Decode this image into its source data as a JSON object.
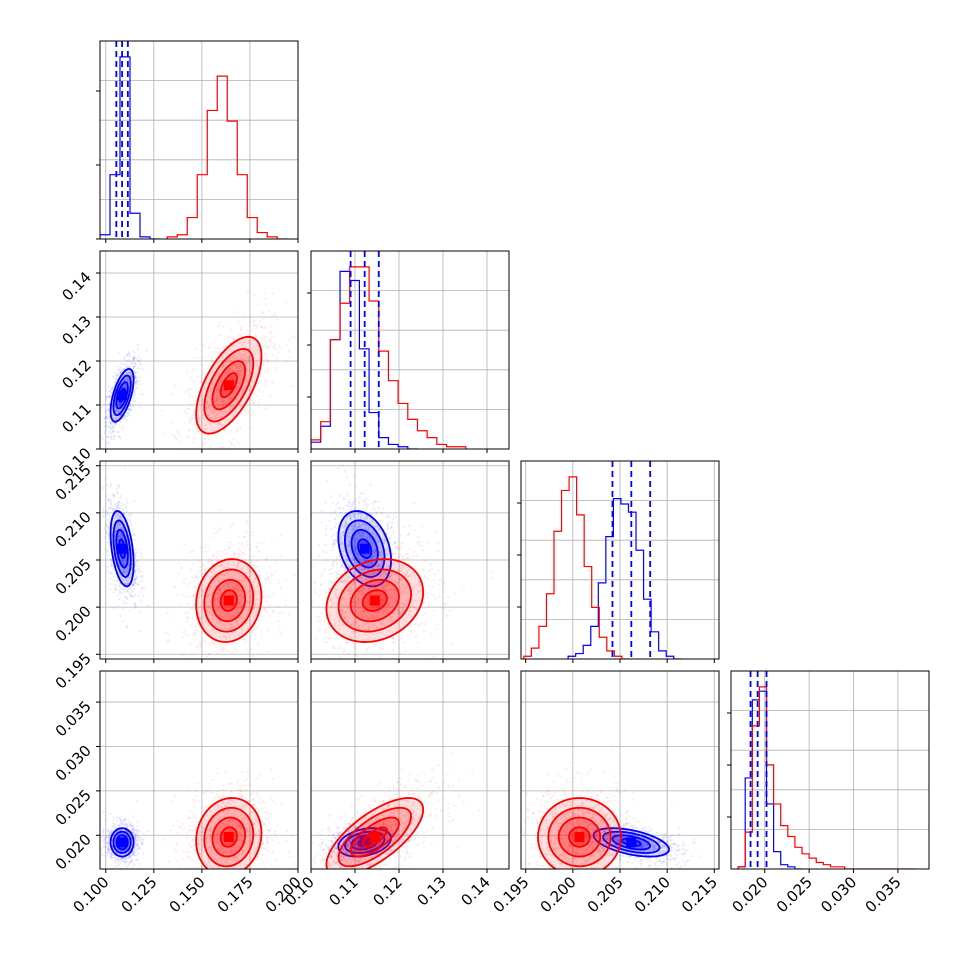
{
  "chart_data": {
    "type": "corner",
    "parameters": 4,
    "grid": true,
    "colors": {
      "blue": "#0000ff",
      "red": "#ff0000",
      "axis": "#000000",
      "grid": "#b0b0b0"
    },
    "ranges": [
      [
        0.097,
        0.2
      ],
      [
        0.1,
        0.145
      ],
      [
        0.1945,
        0.2155
      ],
      [
        0.0162,
        0.0385
      ]
    ],
    "ticks": [
      {
        "values": [
          0.1,
          0.125,
          0.15,
          0.175,
          0.2
        ],
        "labels": [
          "0.100",
          "0.125",
          "0.150",
          "0.175",
          "0.200"
        ]
      },
      {
        "values": [
          0.1,
          0.11,
          0.12,
          0.13,
          0.14
        ],
        "labels": [
          "0.10",
          "0.11",
          "0.12",
          "0.13",
          "0.14"
        ]
      },
      {
        "values": [
          0.195,
          0.2,
          0.205,
          0.21,
          0.215
        ],
        "labels": [
          "0.195",
          "0.200",
          "0.205",
          "0.210",
          "0.215"
        ]
      },
      {
        "values": [
          0.02,
          0.025,
          0.03,
          0.035
        ],
        "labels": [
          "0.020",
          "0.025",
          "0.030",
          "0.035"
        ]
      }
    ],
    "series": [
      {
        "color": "blue",
        "mean": [
          0.1085,
          0.1122,
          0.2062,
          0.0192
        ],
        "std": [
          0.003,
          0.003,
          0.002,
          0.0008
        ],
        "corr": [
          [
            0,
            1,
            0.6
          ],
          [
            0,
            2,
            -0.4
          ],
          [
            1,
            2,
            -0.3
          ],
          [
            2,
            3,
            -0.5
          ],
          [
            0,
            3,
            0.0
          ],
          [
            1,
            3,
            0.3
          ]
        ],
        "quantiles": [
          [
            0.1055,
            0.1085,
            0.1115
          ],
          [
            0.109,
            0.1122,
            0.1154
          ],
          [
            0.2042,
            0.2062,
            0.2082
          ],
          [
            0.0184,
            0.0192,
            0.0202
          ]
        ]
      },
      {
        "color": "red",
        "mean": [
          0.164,
          0.1145,
          0.2007,
          0.0198
        ],
        "std": [
          0.0085,
          0.0055,
          0.0022,
          0.0022
        ],
        "corr": [
          [
            0,
            1,
            0.6
          ],
          [
            0,
            2,
            0.1
          ],
          [
            1,
            2,
            0.2
          ],
          [
            1,
            3,
            0.7
          ],
          [
            0,
            3,
            0.1
          ],
          [
            2,
            3,
            0.0
          ]
        ]
      }
    ],
    "histograms": [
      {
        "blue": {
          "start": 0.097,
          "width": 0.0052,
          "counts": [
            2,
            30,
            85,
            12,
            1,
            0
          ]
        },
        "red": {
          "start": 0.132,
          "width": 0.0052,
          "counts": [
            1,
            2,
            10,
            30,
            60,
            76,
            55,
            30,
            10,
            3,
            1,
            0
          ]
        }
      },
      {
        "blue": {
          "start": 0.1,
          "width": 0.0022,
          "counts": [
            3,
            10,
            48,
            78,
            74,
            44,
            16,
            5,
            2,
            1,
            0
          ]
        },
        "red": {
          "start": 0.1,
          "width": 0.0022,
          "counts": [
            4,
            12,
            48,
            64,
            80,
            80,
            65,
            43,
            30,
            20,
            13,
            8,
            5,
            2,
            1,
            1
          ]
        }
      },
      {
        "blue": {
          "start": 0.1995,
          "width": 0.0008,
          "counts": [
            1,
            2,
            5,
            12,
            28,
            45,
            59,
            57,
            54,
            40,
            22,
            10,
            3,
            1,
            0
          ]
        },
        "red": {
          "start": 0.1948,
          "width": 0.0008,
          "counts": [
            1,
            4,
            12,
            24,
            47,
            62,
            67,
            53,
            34,
            19,
            8,
            3,
            1,
            0
          ]
        }
      },
      {
        "blue": {
          "start": 0.017,
          "width": 0.0008,
          "counts": [
            1,
            42,
            78,
            82,
            30,
            8,
            2,
            1,
            0
          ]
        },
        "red": {
          "start": 0.017,
          "width": 0.0008,
          "counts": [
            1,
            17,
            66,
            84,
            48,
            30,
            20,
            15,
            10,
            7,
            5,
            3,
            2,
            1,
            1,
            0,
            0,
            0,
            0,
            0,
            0,
            0,
            0,
            0,
            0
          ]
        }
      }
    ]
  }
}
